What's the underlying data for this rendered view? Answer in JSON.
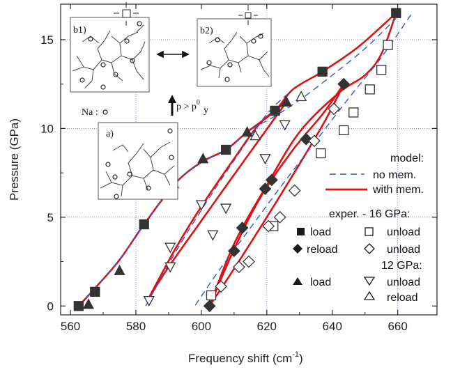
{
  "chart_data": {
    "type": "scatter",
    "xlabel": "Frequency shift (cm",
    "xlabel_sup": "-1",
    "xlabel_suffix": ")",
    "ylabel": "Pressure (GPa)",
    "xlim": [
      557,
      672
    ],
    "ylim": [
      -0.5,
      17
    ],
    "xticks": [
      560,
      580,
      600,
      620,
      640,
      660
    ],
    "yticks": [
      0,
      5,
      10,
      15
    ],
    "grid": "dotted at x=580, 620, 660 and y=5, 10, 15",
    "colors": {
      "model_with_mem": "#e01010",
      "model_no_mem": "#3355dd",
      "marker_fill": "#333333"
    },
    "series": [
      {
        "name": "16 GPa load",
        "marker": "filled-square",
        "points": [
          [
            562.5,
            0.0
          ],
          [
            567.5,
            0.8
          ],
          [
            582.5,
            4.6
          ],
          [
            607.5,
            8.8
          ],
          [
            622.5,
            11.0
          ],
          [
            637.0,
            13.2
          ],
          [
            659.5,
            16.5
          ]
        ]
      },
      {
        "name": "16 GPa unload",
        "marker": "open-square",
        "points": [
          [
            657.0,
            14.7
          ],
          [
            655.0,
            13.3
          ],
          [
            651.5,
            12.2
          ],
          [
            646.5,
            10.9
          ],
          [
            643.5,
            9.9
          ],
          [
            636.5,
            8.6
          ],
          [
            622.0,
            4.5
          ],
          [
            603.0,
            0.6
          ]
        ]
      },
      {
        "name": "16 GPa reload",
        "marker": "filled-diamond",
        "points": [
          [
            602.5,
            0.0
          ],
          [
            610.0,
            3.1
          ],
          [
            612.5,
            4.4
          ],
          [
            619.5,
            6.6
          ],
          [
            621.5,
            7.1
          ],
          [
            632.0,
            9.4
          ],
          [
            643.5,
            12.5
          ]
        ]
      },
      {
        "name": "16 GPa unload after reload",
        "marker": "open-diamond",
        "points": [
          [
            640.5,
            11.1
          ],
          [
            634.5,
            9.3
          ],
          [
            628.5,
            6.5
          ],
          [
            624.0,
            5.0
          ],
          [
            620.5,
            4.5
          ],
          [
            614.5,
            2.5
          ],
          [
            611.5,
            2.2
          ],
          [
            606.0,
            1.1
          ]
        ]
      },
      {
        "name": "12 GPa load",
        "marker": "filled-triangle",
        "points": [
          [
            565.5,
            0.1
          ],
          [
            575.0,
            2.0
          ],
          [
            591.5,
            6.9
          ],
          [
            600.5,
            8.3
          ],
          [
            614.0,
            9.8
          ],
          [
            626.0,
            11.5
          ]
        ]
      },
      {
        "name": "12 GPa unload",
        "marker": "open-triangle-down",
        "points": [
          [
            625.5,
            10.2
          ],
          [
            619.5,
            8.3
          ],
          [
            607.5,
            5.5
          ],
          [
            603.5,
            4.0
          ],
          [
            600.0,
            5.7
          ],
          [
            590.5,
            3.3
          ],
          [
            590.5,
            2.2
          ],
          [
            584.0,
            0.3
          ]
        ]
      },
      {
        "name": "12 GPa reload",
        "marker": "open-triangle-up",
        "points": [
          [
            616.5,
            9.6
          ],
          [
            630.5,
            11.8
          ]
        ]
      }
    ],
    "model_with_mem": [
      [
        [
          562.5,
          0.0
        ],
        [
          567.5,
          1.0
        ],
        [
          575.0,
          2.6
        ],
        [
          582.5,
          4.6
        ],
        [
          592.0,
          6.9
        ],
        [
          600.0,
          8.1
        ],
        [
          607.5,
          8.8
        ],
        [
          614.0,
          9.8
        ],
        [
          622.5,
          11.0
        ],
        [
          628.0,
          12.2
        ],
        [
          637.0,
          13.2
        ],
        [
          648.0,
          14.6
        ],
        [
          659.5,
          16.5
        ]
      ],
      [
        [
          659.5,
          16.5
        ],
        [
          655.0,
          14.2
        ],
        [
          650.0,
          13.0
        ],
        [
          642.0,
          12.0
        ],
        [
          630.0,
          9.8
        ],
        [
          620.0,
          6.8
        ],
        [
          610.0,
          3.5
        ],
        [
          602.5,
          0.0
        ]
      ],
      [
        [
          602.5,
          0.0
        ],
        [
          610.0,
          3.2
        ],
        [
          618.0,
          6.1
        ],
        [
          628.0,
          8.8
        ],
        [
          637.0,
          10.8
        ],
        [
          643.5,
          12.5
        ]
      ],
      [
        [
          643.5,
          12.5
        ],
        [
          638.0,
          10.5
        ],
        [
          630.0,
          8.0
        ],
        [
          620.0,
          5.0
        ],
        [
          610.0,
          2.1
        ],
        [
          602.5,
          0.0
        ]
      ],
      [
        [
          626.0,
          11.5
        ],
        [
          619.0,
          9.7
        ],
        [
          610.0,
          7.4
        ],
        [
          600.0,
          4.8
        ],
        [
          590.0,
          2.2
        ],
        [
          583.5,
          0.3
        ]
      ],
      [
        [
          583.5,
          0.3
        ],
        [
          592.0,
          3.2
        ],
        [
          600.0,
          5.6
        ],
        [
          610.0,
          8.3
        ],
        [
          618.0,
          10.3
        ],
        [
          626.0,
          11.5
        ]
      ]
    ],
    "model_no_mem": [
      [
        [
          562.5,
          0.0
        ],
        [
          567.5,
          1.0
        ],
        [
          575.0,
          2.6
        ],
        [
          582.5,
          4.6
        ],
        [
          592.0,
          6.9
        ],
        [
          600.0,
          8.1
        ],
        [
          607.5,
          8.8
        ],
        [
          614.0,
          9.8
        ],
        [
          622.5,
          10.7
        ],
        [
          630.0,
          11.6
        ],
        [
          640.0,
          13.0
        ],
        [
          650.0,
          14.5
        ],
        [
          659.5,
          16.2
        ]
      ],
      [
        [
          664.0,
          16.4
        ],
        [
          655.0,
          14.0
        ],
        [
          645.0,
          11.7
        ],
        [
          635.0,
          9.3
        ],
        [
          625.0,
          6.9
        ],
        [
          615.0,
          4.4
        ],
        [
          605.0,
          1.9
        ],
        [
          598.0,
          0.0
        ]
      ],
      [
        [
          583.0,
          0.0
        ],
        [
          592.0,
          3.0
        ],
        [
          600.0,
          5.4
        ],
        [
          610.0,
          8.2
        ],
        [
          620.0,
          10.8
        ],
        [
          628.0,
          12.2
        ]
      ]
    ],
    "legend": {
      "model_title": "model:",
      "no_mem_label": "no mem.",
      "with_mem_label": "with mem.",
      "exper_title": "exper.  -  16 GPa:",
      "load_label": "load",
      "unload_label": "unload",
      "reload_label": "reload",
      "unload2_label": "unload",
      "gpa12_title": "12 GPa:",
      "load12_label": "load",
      "unload12_label": "unload",
      "reload12_label": "reload"
    },
    "insets": {
      "b1_label": "b1)",
      "b2_label": "b2)",
      "a_label": "a)",
      "na_label": "Na :",
      "pressure_label": "p > p",
      "pressure_sup": "0",
      "pressure_sub": "y"
    }
  }
}
